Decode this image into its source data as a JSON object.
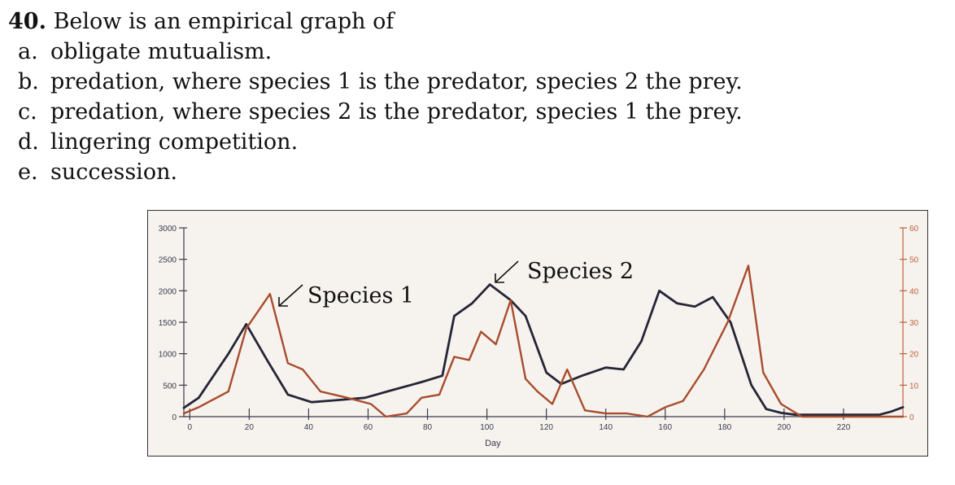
{
  "question": {
    "number": "40.",
    "stem": "Below is an empirical graph of",
    "options": [
      {
        "letter": "a.",
        "text": "obligate mutualism."
      },
      {
        "letter": "b.",
        "text": "predation, where species 1 is the predator, species 2 the prey."
      },
      {
        "letter": "c.",
        "text": "predation, where species 2 is the predator, species 1 the prey."
      },
      {
        "letter": "d.",
        "text": "lingering competition."
      },
      {
        "letter": "e.",
        "text": "succession."
      }
    ]
  },
  "chart_data": {
    "type": "line",
    "xlabel": "Day",
    "xlim": [
      -2,
      240
    ],
    "x_ticks": [
      0,
      20,
      40,
      60,
      80,
      100,
      120,
      140,
      160,
      180,
      200,
      220
    ],
    "y_left": {
      "ylim": [
        0,
        3000
      ],
      "ticks": [
        0,
        500,
        1000,
        1500,
        2000,
        2500,
        3000
      ],
      "color": "#3a3a4a"
    },
    "y_right": {
      "ylim": [
        0,
        60
      ],
      "ticks": [
        0,
        10,
        20,
        30,
        40,
        50,
        60
      ],
      "color": "#c0603a"
    },
    "grid": false,
    "annotations": [
      {
        "text": "Species 1",
        "points_to": "brown"
      },
      {
        "text": "Species 2",
        "points_to": "black"
      }
    ],
    "series": [
      {
        "color": "#252536",
        "axis": "left",
        "x": [
          -2,
          3,
          13,
          19,
          26,
          33,
          41,
          49,
          59,
          68,
          78,
          85,
          89,
          95,
          101,
          108,
          113,
          120,
          125,
          132,
          140,
          146,
          152,
          158,
          164,
          170,
          176,
          182,
          189,
          194,
          199,
          204,
          212,
          222,
          232,
          236,
          240
        ],
        "y": [
          140,
          300,
          1000,
          1470,
          900,
          350,
          230,
          260,
          300,
          420,
          550,
          650,
          1600,
          1800,
          2100,
          1850,
          1600,
          700,
          520,
          650,
          780,
          750,
          1200,
          2000,
          1800,
          1750,
          1900,
          1500,
          500,
          120,
          60,
          30,
          30,
          30,
          30,
          80,
          150
        ]
      },
      {
        "color": "#a84c2c",
        "axis": "right",
        "x": [
          -2,
          3,
          13,
          19,
          27,
          33,
          38,
          44,
          53,
          61,
          66,
          73,
          78,
          84,
          89,
          94,
          98,
          103,
          108,
          113,
          117,
          122,
          127,
          133,
          140,
          147,
          154,
          160,
          166,
          173,
          181,
          188,
          193,
          199,
          206,
          212,
          222,
          232,
          240
        ],
        "y": [
          1,
          3,
          8,
          28,
          39,
          17,
          15,
          8,
          6,
          4,
          0,
          1,
          6,
          7,
          19,
          18,
          27,
          23,
          37,
          12,
          8,
          4,
          15,
          2,
          1,
          1,
          0,
          3,
          5,
          15,
          30,
          48,
          14,
          4,
          0,
          0,
          0,
          0,
          0
        ]
      }
    ]
  }
}
